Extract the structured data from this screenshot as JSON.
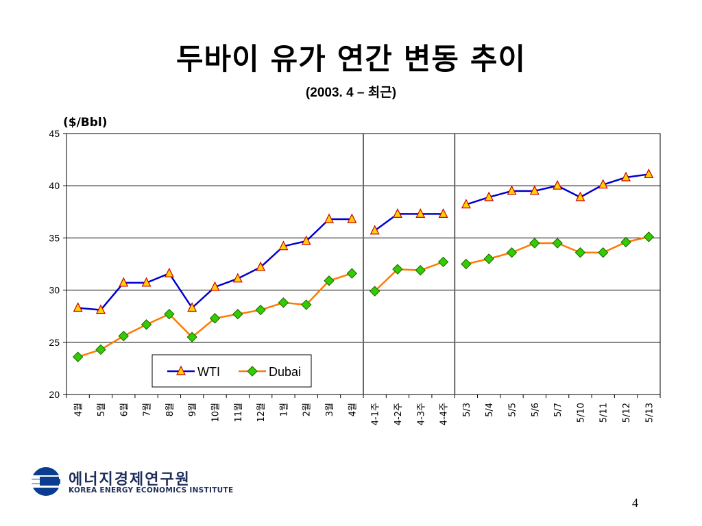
{
  "slide": {
    "title": "두바이 유가 연간 변동 추이",
    "subtitle": "(2003. 4 – 최근)",
    "page_number": "4"
  },
  "logo": {
    "korean": "에너지경제연구원",
    "english": "KOREA ENERGY ECONOMICS INSTITUTE"
  },
  "colors": {
    "wti_line": "#0000cc",
    "wti_marker_fill": "#ffd200",
    "wti_marker_stroke": "#cc0000",
    "dubai_line": "#ff7a00",
    "dubai_marker_fill": "#33cc00",
    "dubai_marker_stroke": "#1a6600"
  },
  "chart_data": {
    "type": "line",
    "ylabel": "($/Bbl)",
    "ylim": [
      20,
      45
    ],
    "yticks": [
      20,
      25,
      30,
      35,
      40,
      45
    ],
    "grid": true,
    "legend_placement": "bottom-left",
    "categories": [
      "4월",
      "5월",
      "6월",
      "7월",
      "8월",
      "9월",
      "10월",
      "11월",
      "12월",
      "1월",
      "2월",
      "3월",
      "4월",
      "4-1주",
      "4-2주",
      "4-3주",
      "4-4주",
      "5/3",
      "5/4",
      "5/5",
      "5/6",
      "5/7",
      "5/10",
      "5/11",
      "5/12",
      "5/13"
    ],
    "segments": [
      [
        0,
        12
      ],
      [
        13,
        16
      ],
      [
        17,
        25
      ]
    ],
    "series": [
      {
        "name": "WTI",
        "values": [
          28.3,
          28.1,
          30.7,
          30.7,
          31.6,
          28.3,
          30.3,
          31.1,
          32.2,
          34.2,
          34.7,
          36.8,
          36.8,
          35.7,
          37.3,
          37.3,
          37.3,
          38.2,
          38.9,
          39.5,
          39.5,
          40.0,
          38.9,
          40.1,
          40.8,
          41.1
        ]
      },
      {
        "name": "Dubai",
        "values": [
          23.6,
          24.3,
          25.6,
          26.7,
          27.7,
          25.5,
          27.3,
          27.7,
          28.1,
          28.8,
          28.6,
          30.9,
          31.6,
          29.9,
          32.0,
          31.9,
          32.7,
          32.5,
          33.0,
          33.6,
          34.5,
          34.5,
          33.6,
          33.6,
          34.6,
          35.1
        ]
      }
    ]
  }
}
